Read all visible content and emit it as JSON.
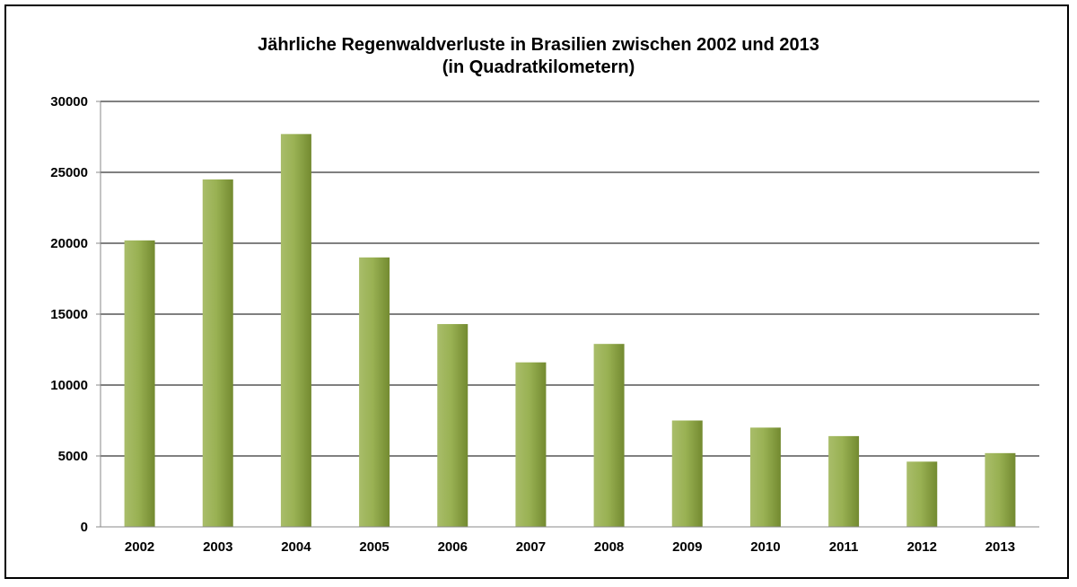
{
  "chart_data": {
    "type": "bar",
    "title": "Jährliche Regenwaldverluste in Brasilien zwischen 2002 und 2013",
    "subtitle": "(in Quadratkilometern)",
    "xlabel": "",
    "ylabel": "",
    "categories": [
      "2002",
      "2003",
      "2004",
      "2005",
      "2006",
      "2007",
      "2008",
      "2009",
      "2010",
      "2011",
      "2012",
      "2013"
    ],
    "values": [
      20200,
      24500,
      27700,
      19000,
      14300,
      11600,
      12900,
      7500,
      7000,
      6400,
      4600,
      5200
    ],
    "ylim": [
      0,
      30000
    ],
    "yticks": [
      "0",
      "5000",
      "10000",
      "15000",
      "20000",
      "25000",
      "30000"
    ],
    "grid": true,
    "legend": "none",
    "colors": {
      "bar_light": "#a9bd6a",
      "bar_mid": "#99b153",
      "bar_dark": "#738a30",
      "grid": "#000000",
      "axis": "#888888"
    }
  }
}
